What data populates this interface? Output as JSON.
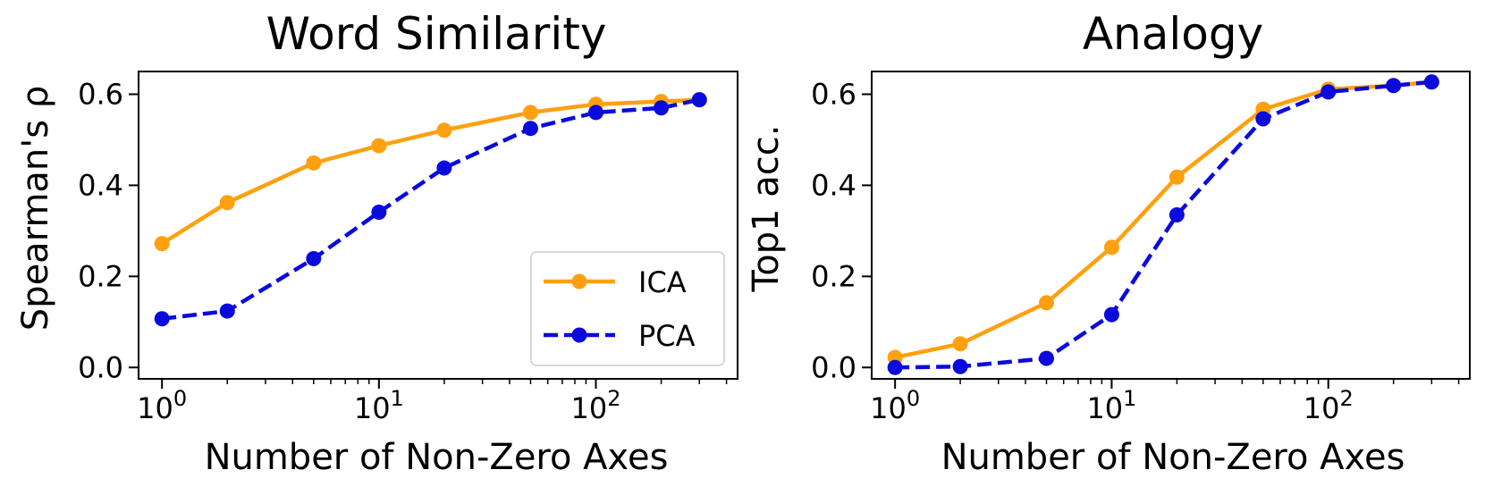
{
  "chart_data": [
    {
      "type": "line",
      "id": "left",
      "title": "Word Similarity",
      "xlabel": "Number of Non-Zero Axes",
      "ylabel": "Spearman's ρ",
      "xscale": "log",
      "xlim": [
        0.78,
        450
      ],
      "ylim": [
        -0.025,
        0.65
      ],
      "x": [
        1,
        2,
        5,
        10,
        20,
        50,
        100,
        200,
        300
      ],
      "xticks": [
        {
          "base": "10",
          "exp": "0"
        },
        {
          "base": "10",
          "exp": "1"
        },
        {
          "base": "10",
          "exp": "2"
        }
      ],
      "yticks": [
        "0.0",
        "0.2",
        "0.4",
        "0.6"
      ],
      "legend": "lower right",
      "series": [
        {
          "name": "ICA",
          "color": "#FFA00F",
          "dash": "solid",
          "values": [
            0.272,
            0.362,
            0.449,
            0.487,
            0.521,
            0.56,
            0.578,
            0.584,
            0.588
          ]
        },
        {
          "name": "PCA",
          "color": "#0A0ADC",
          "dash": "dashed",
          "values": [
            0.107,
            0.124,
            0.239,
            0.341,
            0.438,
            0.525,
            0.56,
            0.57,
            0.588
          ]
        }
      ]
    },
    {
      "type": "line",
      "id": "right",
      "title": "Analogy",
      "xlabel": "Number of Non-Zero Axes",
      "ylabel": "Top1 acc.",
      "xscale": "log",
      "xlim": [
        0.78,
        450
      ],
      "ylim": [
        -0.025,
        0.65
      ],
      "x": [
        1,
        2,
        5,
        10,
        20,
        50,
        100,
        200,
        300
      ],
      "xticks": [
        {
          "base": "10",
          "exp": "0"
        },
        {
          "base": "10",
          "exp": "1"
        },
        {
          "base": "10",
          "exp": "2"
        }
      ],
      "yticks": [
        "0.0",
        "0.2",
        "0.4",
        "0.6"
      ],
      "series": [
        {
          "name": "ICA",
          "color": "#FFA00F",
          "dash": "solid",
          "values": [
            0.022,
            0.052,
            0.142,
            0.264,
            0.418,
            0.567,
            0.611,
            0.619,
            0.627
          ]
        },
        {
          "name": "PCA",
          "color": "#0A0ADC",
          "dash": "dashed",
          "values": [
            0.0,
            0.002,
            0.02,
            0.116,
            0.335,
            0.546,
            0.605,
            0.619,
            0.627
          ]
        }
      ]
    }
  ]
}
